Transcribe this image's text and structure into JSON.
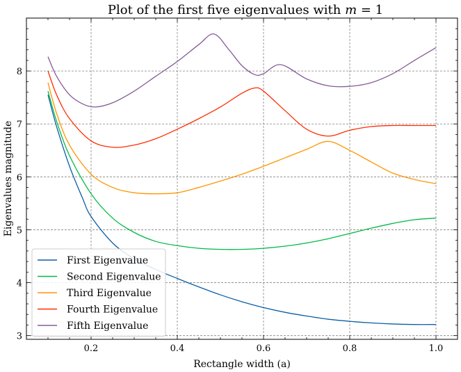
{
  "chart_data": {
    "type": "line",
    "title_prefix": "Plot of the first five eigenvalues with ",
    "title_math_var": "m",
    "title_math_rest": " = 1",
    "xlabel": "Rectangle width (a)",
    "ylabel": "Eigenvalues magnitude",
    "xlim": [
      0.05,
      1.05
    ],
    "ylim": [
      2.93,
      9.0
    ],
    "xticks": [
      0.2,
      0.4,
      0.6,
      0.8,
      1.0
    ],
    "xtick_labels": [
      "0.2",
      "0.4",
      "0.6",
      "0.8",
      "1.0"
    ],
    "yticks": [
      3,
      4,
      5,
      6,
      7,
      8
    ],
    "ytick_labels": [
      "3",
      "4",
      "5",
      "6",
      "7",
      "8"
    ],
    "grid": true,
    "legend_position": "lower-left",
    "series": [
      {
        "name": "First Eigenvalue",
        "color": "#0C5DA5",
        "x": [
          0.1,
          0.12,
          0.15,
          0.18,
          0.2,
          0.25,
          0.3,
          0.35,
          0.4,
          0.45,
          0.5,
          0.55,
          0.6,
          0.65,
          0.7,
          0.75,
          0.8,
          0.85,
          0.9,
          0.95,
          1.0
        ],
        "y": [
          7.55,
          6.95,
          6.2,
          5.6,
          5.25,
          4.75,
          4.45,
          4.25,
          4.08,
          3.92,
          3.77,
          3.64,
          3.53,
          3.44,
          3.37,
          3.31,
          3.27,
          3.24,
          3.22,
          3.21,
          3.21
        ]
      },
      {
        "name": "Second Eigenvalue",
        "color": "#00B945",
        "x": [
          0.1,
          0.12,
          0.15,
          0.2,
          0.25,
          0.3,
          0.35,
          0.4,
          0.45,
          0.5,
          0.55,
          0.6,
          0.65,
          0.7,
          0.75,
          0.8,
          0.85,
          0.9,
          0.95,
          1.0
        ],
        "y": [
          7.62,
          7.05,
          6.4,
          5.68,
          5.22,
          4.95,
          4.78,
          4.7,
          4.65,
          4.63,
          4.63,
          4.65,
          4.69,
          4.75,
          4.83,
          4.93,
          5.03,
          5.12,
          5.19,
          5.22
        ]
      },
      {
        "name": "Third Eigenvalue",
        "color": "#FF9500",
        "x": [
          0.1,
          0.12,
          0.15,
          0.2,
          0.25,
          0.3,
          0.35,
          0.4,
          0.45,
          0.5,
          0.55,
          0.6,
          0.65,
          0.7,
          0.75,
          0.8,
          0.85,
          0.9,
          0.95,
          1.0
        ],
        "y": [
          7.78,
          7.2,
          6.6,
          6.05,
          5.8,
          5.7,
          5.68,
          5.7,
          5.8,
          5.92,
          6.05,
          6.2,
          6.36,
          6.52,
          6.67,
          6.5,
          6.28,
          6.07,
          5.95,
          5.87
        ]
      },
      {
        "name": "Fourth Eigenvalue",
        "color": "#FF2C00",
        "x": [
          0.1,
          0.12,
          0.15,
          0.2,
          0.25,
          0.3,
          0.35,
          0.4,
          0.45,
          0.5,
          0.55,
          0.58,
          0.6,
          0.65,
          0.7,
          0.75,
          0.8,
          0.85,
          0.9,
          0.95,
          1.0
        ],
        "y": [
          8.0,
          7.55,
          7.1,
          6.68,
          6.56,
          6.6,
          6.72,
          6.9,
          7.1,
          7.32,
          7.58,
          7.68,
          7.62,
          7.25,
          6.9,
          6.77,
          6.88,
          6.95,
          6.97,
          6.97,
          6.97
        ]
      },
      {
        "name": "Fifth Eigenvalue",
        "color": "#845B97",
        "x": [
          0.1,
          0.12,
          0.15,
          0.18,
          0.21,
          0.25,
          0.3,
          0.35,
          0.4,
          0.45,
          0.485,
          0.52,
          0.55,
          0.58,
          0.6,
          0.64,
          0.7,
          0.75,
          0.8,
          0.85,
          0.9,
          0.95,
          1.0
        ],
        "y": [
          8.27,
          7.9,
          7.55,
          7.38,
          7.32,
          7.4,
          7.62,
          7.9,
          8.18,
          8.5,
          8.7,
          8.4,
          8.1,
          7.93,
          7.95,
          8.12,
          7.85,
          7.72,
          7.71,
          7.78,
          7.95,
          8.2,
          8.44
        ]
      }
    ]
  }
}
